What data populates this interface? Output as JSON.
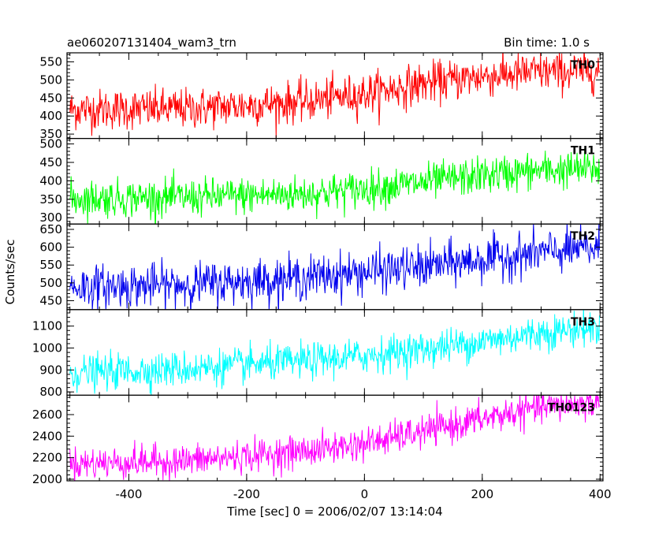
{
  "header": {
    "title": "ae060207131404_wam3_trn",
    "bin_time": "Bin time: 1.0 s"
  },
  "axes": {
    "xlabel": "Time [sec] 0 = 2006/02/07 13:14:04",
    "ylabel": "Counts/sec"
  },
  "chart_data": {
    "type": "line",
    "title": "ae060207131404_wam3_trn",
    "xlabel": "Time [sec] 0 = 2006/02/07 13:14:04",
    "ylabel": "Counts/sec",
    "xlim": [
      -505,
      405
    ],
    "xticks": [
      -400,
      -200,
      0,
      200,
      400
    ],
    "x_start": -500,
    "x_end": 399,
    "bin_time_s": 1.0,
    "grid": false,
    "legend": "none",
    "panels": [
      {
        "name": "TH0",
        "color": "#ff0000",
        "ylim": [
          338,
          575
        ],
        "yticks": [
          350,
          400,
          450,
          500,
          550
        ],
        "trend_x": [
          -500,
          -300,
          -100,
          0,
          100,
          200,
          300,
          399
        ],
        "trend_y": [
          418,
          420,
          440,
          462,
          490,
          510,
          522,
          525
        ],
        "noise": 28
      },
      {
        "name": "TH1",
        "color": "#00ff00",
        "ylim": [
          283,
          515
        ],
        "yticks": [
          300,
          350,
          400,
          450,
          500
        ],
        "trend_x": [
          -500,
          -300,
          -100,
          0,
          100,
          200,
          300,
          399
        ],
        "trend_y": [
          352,
          355,
          365,
          378,
          395,
          415,
          428,
          432
        ],
        "noise": 25
      },
      {
        "name": "TH2",
        "color": "#0000ee",
        "ylim": [
          425,
          665
        ],
        "yticks": [
          450,
          500,
          550,
          600,
          650
        ],
        "trend_x": [
          -500,
          -300,
          -100,
          0,
          100,
          200,
          300,
          399
        ],
        "trend_y": [
          488,
          495,
          515,
          530,
          545,
          565,
          585,
          598
        ],
        "noise": 30
      },
      {
        "name": "TH3",
        "color": "#00ffff",
        "ylim": [
          785,
          1175
        ],
        "yticks": [
          800,
          900,
          1000,
          1100
        ],
        "trend_x": [
          -500,
          -300,
          -100,
          0,
          100,
          200,
          300,
          399
        ],
        "trend_y": [
          885,
          905,
          940,
          965,
          995,
          1030,
          1070,
          1095
        ],
        "noise": 40
      },
      {
        "name": "TH0123",
        "color": "#ff00ff",
        "ylim": [
          1985,
          2780
        ],
        "yticks": [
          2000,
          2200,
          2400,
          2600
        ],
        "trend_x": [
          -500,
          -300,
          -100,
          0,
          100,
          200,
          300,
          399
        ],
        "trend_y": [
          2145,
          2170,
          2260,
          2330,
          2440,
          2560,
          2670,
          2710
        ],
        "noise": 75
      }
    ]
  }
}
